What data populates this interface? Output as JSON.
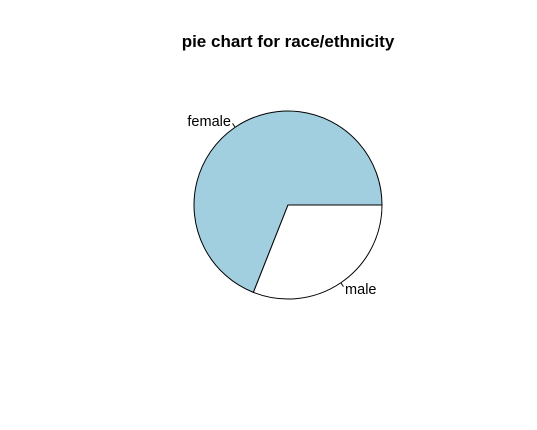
{
  "chart_data": {
    "type": "pie",
    "title": "pie chart for race/ethnicity",
    "slices": [
      {
        "label": "female",
        "value": 0.69,
        "color": "#a2cfe0"
      },
      {
        "label": "male",
        "value": 0.31,
        "color": "#ffffff"
      }
    ],
    "start": "3 o'clock",
    "direction": "counterclockwise",
    "border_color": "#000000"
  }
}
